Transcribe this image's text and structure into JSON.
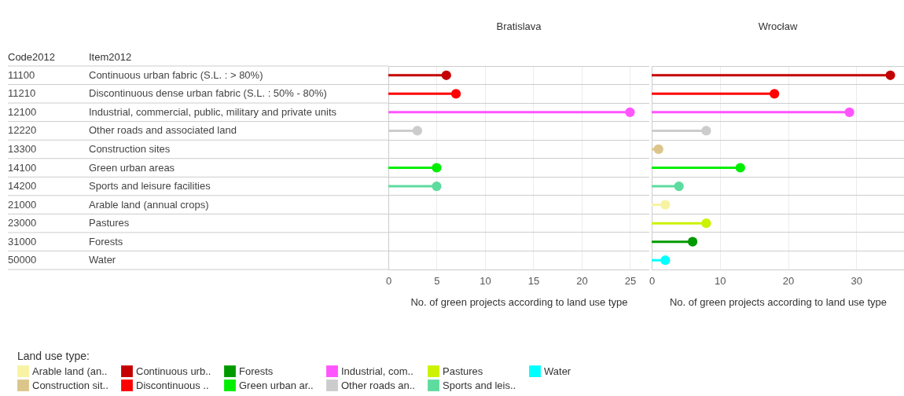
{
  "chart_data": [
    {
      "type": "lollipop",
      "orientation": "horizontal",
      "title": "Bratislava",
      "xlabel": "No. of green projects according to land use type",
      "ylabel": "Item2012",
      "legend_title": "Land use type:",
      "legend": "bottom left",
      "grid": true,
      "categories": [
        "Continuous urban fabric (S.L. : > 80%)",
        "Discontinuous dense urban fabric (S.L. : 50% -  80%)",
        "Industrial, commercial, public, military and private units",
        "Other roads and associated land",
        "Construction sites",
        "Green urban areas",
        "Sports and leisure facilities",
        "Arable land (annual crops)",
        "Pastures",
        "Forests",
        "Water"
      ],
      "annotations": [
        "Code2012",
        "11100",
        "11210",
        "12100",
        "12220",
        "13300",
        "14100",
        "14200",
        "21000",
        "23000",
        "31000",
        "50000"
      ],
      "xlim": [
        0,
        27
      ],
      "xticks": [
        0,
        5,
        10,
        15,
        20,
        25
      ],
      "series": [
        {
          "name": "Arable land (an..",
          "color": "#f7f3a3",
          "values": [
            null,
            null,
            null,
            null,
            null,
            null,
            null,
            null,
            null,
            null,
            null
          ]
        },
        {
          "name": "Continuous urb..",
          "color": "#c40000",
          "values": [
            6,
            null,
            null,
            null,
            null,
            null,
            null,
            null,
            null,
            null,
            null
          ]
        },
        {
          "name": "Forests",
          "color": "#009a00",
          "values": [
            null,
            null,
            null,
            null,
            null,
            null,
            null,
            null,
            null,
            null,
            null
          ]
        },
        {
          "name": "Industrial, com..",
          "color": "#ff55ff",
          "values": [
            null,
            null,
            25,
            null,
            null,
            null,
            null,
            null,
            null,
            null,
            null
          ]
        },
        {
          "name": "Pastures",
          "color": "#ccf200",
          "values": [
            null,
            null,
            null,
            null,
            null,
            null,
            null,
            null,
            null,
            null,
            null
          ]
        },
        {
          "name": "Water",
          "color": "#00ffff",
          "values": [
            null,
            null,
            null,
            null,
            null,
            null,
            null,
            null,
            null,
            null,
            null
          ]
        },
        {
          "name": "Construction sit..",
          "color": "#dcc58b",
          "values": [
            null,
            null,
            null,
            null,
            null,
            null,
            null,
            null,
            null,
            null,
            null
          ]
        },
        {
          "name": "Discontinuous ..",
          "color": "#ff0000",
          "values": [
            null,
            7,
            null,
            null,
            null,
            null,
            null,
            null,
            null,
            null,
            null
          ]
        },
        {
          "name": "Green urban ar..",
          "color": "#00ee00",
          "values": [
            null,
            null,
            null,
            null,
            null,
            5,
            null,
            null,
            null,
            null,
            null
          ]
        },
        {
          "name": "Other roads an..",
          "color": "#cccccc",
          "values": [
            null,
            null,
            null,
            3,
            null,
            null,
            null,
            null,
            null,
            null,
            null
          ]
        },
        {
          "name": "Sports and leis..",
          "color": "#5edb9e",
          "values": [
            null,
            null,
            null,
            null,
            null,
            null,
            5,
            null,
            null,
            null,
            null
          ]
        }
      ]
    },
    {
      "type": "lollipop",
      "orientation": "horizontal",
      "title": "Wrocław",
      "xlabel": "No. of green projects according to land use type",
      "grid": true,
      "tick_labels": "x",
      "xlim": [
        0,
        37
      ],
      "xticks": [
        0,
        10,
        20,
        30
      ],
      "series": [
        {
          "color": "#f7f3a3",
          "values": [
            null,
            null,
            null,
            null,
            null,
            null,
            null,
            2,
            null,
            null,
            null
          ]
        },
        {
          "color": "#c40000",
          "values": [
            35,
            null,
            null,
            null,
            null,
            null,
            null,
            null,
            null,
            null,
            null
          ]
        },
        {
          "color": "#009a00",
          "values": [
            null,
            null,
            null,
            null,
            null,
            null,
            null,
            null,
            null,
            6,
            null
          ]
        },
        {
          "color": "#ff55ff",
          "values": [
            null,
            null,
            29,
            null,
            null,
            null,
            null,
            null,
            null,
            null,
            null
          ]
        },
        {
          "color": "#ccf200",
          "values": [
            null,
            null,
            null,
            null,
            null,
            null,
            null,
            null,
            8,
            null,
            null
          ]
        },
        {
          "color": "#00ffff",
          "values": [
            null,
            null,
            null,
            null,
            null,
            null,
            null,
            null,
            null,
            null,
            2
          ]
        },
        {
          "color": "#dcc58b",
          "values": [
            null,
            null,
            null,
            null,
            1,
            null,
            null,
            null,
            null,
            null,
            null
          ]
        },
        {
          "color": "#ff0000",
          "values": [
            null,
            18,
            null,
            null,
            null,
            null,
            null,
            null,
            null,
            null,
            null
          ]
        },
        {
          "color": "#00ee00",
          "values": [
            null,
            null,
            null,
            null,
            null,
            13,
            null,
            null,
            null,
            null,
            null
          ]
        },
        {
          "color": "#cccccc",
          "values": [
            null,
            null,
            null,
            8,
            null,
            null,
            null,
            null,
            null,
            null,
            null
          ]
        },
        {
          "color": "#5edb9e",
          "values": [
            null,
            null,
            null,
            null,
            null,
            null,
            4,
            null,
            null,
            null,
            null
          ]
        }
      ]
    }
  ]
}
